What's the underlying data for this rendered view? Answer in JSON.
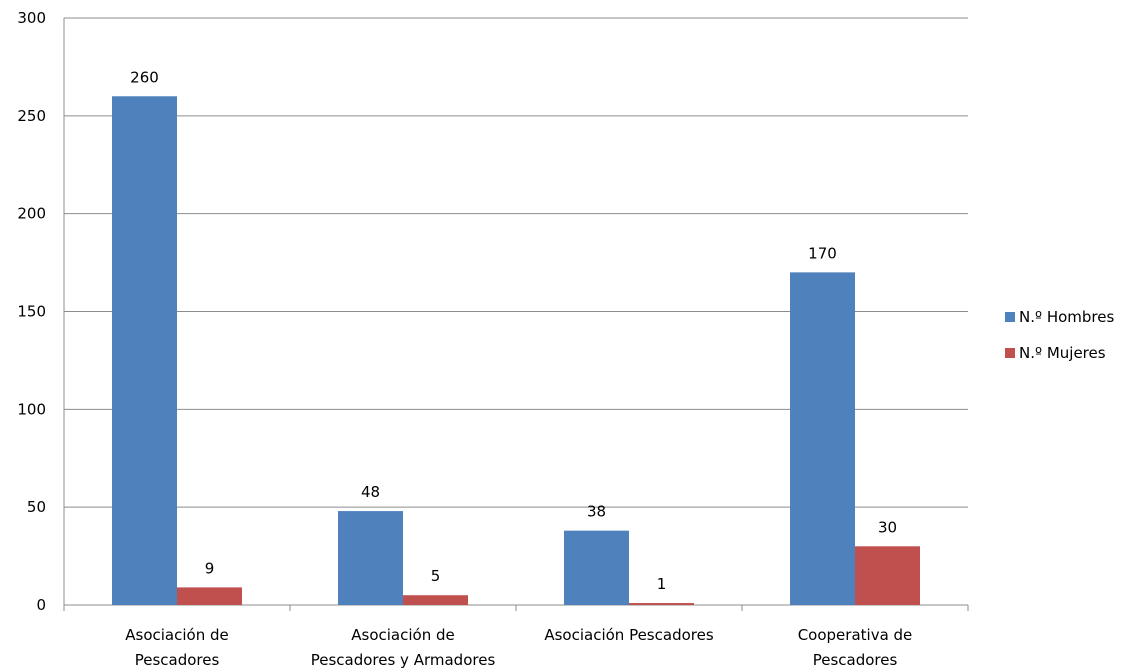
{
  "chart_data": {
    "type": "bar",
    "categories": [
      [
        "Asociación de",
        "Pescadores"
      ],
      [
        "Asociación de",
        "Pescadores y Armadores"
      ],
      [
        "Asociación Pescadores"
      ],
      [
        "Cooperativa de",
        "Pescadores"
      ]
    ],
    "series": [
      {
        "name": "N.º Hombres",
        "values": [
          260,
          48,
          38,
          170
        ],
        "color": "#4F81BD"
      },
      {
        "name": "N.º Mujeres",
        "values": [
          9,
          5,
          1,
          30
        ],
        "color": "#C0504D"
      }
    ],
    "ylim": [
      0,
      300
    ],
    "yticks": [
      0,
      50,
      100,
      150,
      200,
      250,
      300
    ],
    "grid": true,
    "legend_position": "right",
    "data_labels": true,
    "title": "",
    "xlabel": "",
    "ylabel": ""
  }
}
